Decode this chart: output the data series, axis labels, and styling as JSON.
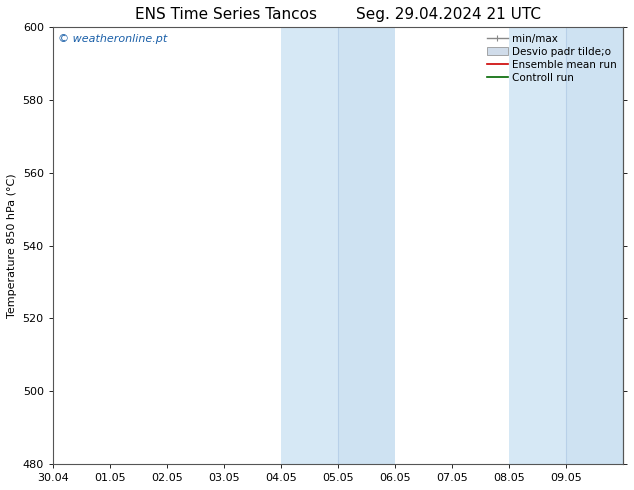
{
  "title_left": "ENS Time Series Tancos",
  "title_right": "Seg. 29.04.2024 21 UTC",
  "ylabel": "Temperature 850 hPa (°C)",
  "ylim": [
    480,
    600
  ],
  "yticks": [
    480,
    500,
    520,
    540,
    560,
    580,
    600
  ],
  "xtick_labels": [
    "30.04",
    "01.05",
    "02.05",
    "03.05",
    "04.05",
    "05.05",
    "06.05",
    "07.05",
    "08.05",
    "09.05"
  ],
  "shaded_regions": [
    {
      "xstart": 4.0,
      "xend": 5.0,
      "color": "#d6e8f5"
    },
    {
      "xstart": 5.0,
      "xend": 6.0,
      "color": "#cee2f2"
    },
    {
      "xstart": 8.0,
      "xend": 9.0,
      "color": "#d6e8f5"
    },
    {
      "xstart": 9.0,
      "xend": 10.0,
      "color": "#cee2f2"
    }
  ],
  "shade_dividers": [
    5.0,
    9.0
  ],
  "watermark_text": "© weatheronline.pt",
  "watermark_color": "#1a5fa8",
  "background_color": "#ffffff",
  "plot_bg_color": "#ffffff",
  "legend_items": [
    {
      "label": "min/max",
      "color": "#888888",
      "style": "line_with_ticks"
    },
    {
      "label": "Desvio padr tilde;o",
      "color": "#d0dcea",
      "style": "filled_box"
    },
    {
      "label": "Ensemble mean run",
      "color": "#cc0000",
      "style": "line"
    },
    {
      "label": "Controll run",
      "color": "#006600",
      "style": "line"
    }
  ],
  "title_fontsize": 11,
  "tick_fontsize": 8,
  "ylabel_fontsize": 8,
  "watermark_fontsize": 8,
  "legend_fontsize": 7.5,
  "spine_color": "#555555",
  "grid_color": "#cccccc"
}
